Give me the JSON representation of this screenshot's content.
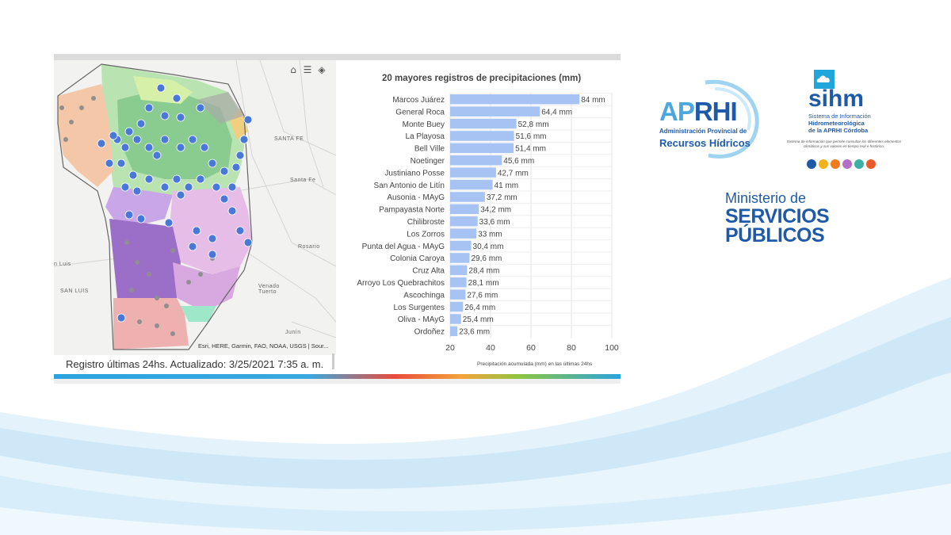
{
  "map": {
    "labels": {
      "santa_fe_top": "SANTA FE",
      "santa_fe_city": "Santa Fe",
      "rosario": "Rosario",
      "san_luis": "SAN LUIS",
      "san_luis_city": "n Luis",
      "venado_tuerto": "Venado Tuerto",
      "junin": "Junín"
    },
    "attribution": "Esri, HERE, Garmin, FAO, NOAA, USGS | Sour...",
    "footer": "Registro últimas 24hs. Actualizado: 3/25/2021 7:35 a. m.",
    "tools": [
      "home-icon",
      "list-icon",
      "layers-icon"
    ]
  },
  "chart_data": {
    "type": "bar",
    "orientation": "horizontal",
    "title": "20 mayores registros de precipitaciones (mm)",
    "xlabel": "Precipitación acumulada (mm) en las últimas 24hs",
    "ylabel": "",
    "xlim": [
      20,
      100
    ],
    "xticks": [
      20,
      40,
      60,
      80,
      100
    ],
    "categories": [
      "Marcos Juárez",
      "General Roca",
      "Monte Buey",
      "La Playosa",
      "Bell Ville",
      "Noetinger",
      "Justiniano Posse",
      "San Antonio de Litín",
      "Ausonia - MAyG",
      "Pampayasta Norte",
      "Chilibroste",
      "Los Zorros",
      "Punta del Agua - MAyG",
      "Colonia Caroya",
      "Cruz Alta",
      "Arroyo Los Quebrachitos",
      "Ascochinga",
      "Los Surgentes",
      "Oliva - MAyG",
      "Ordoñez"
    ],
    "values": [
      84,
      64.4,
      52.8,
      51.6,
      51.4,
      45.6,
      42.7,
      41,
      37.2,
      34.2,
      33.6,
      33,
      30.4,
      29.6,
      28.4,
      28.1,
      27.6,
      26.4,
      25.4,
      23.6
    ],
    "value_labels": [
      "84 mm",
      "64,4 mm",
      "52,8 mm",
      "51,6 mm",
      "51,4 mm",
      "45,6 mm",
      "42,7 mm",
      "41 mm",
      "37,2 mm",
      "34,2 mm",
      "33,6 mm",
      "33 mm",
      "30,4 mm",
      "29,6 mm",
      "28,4 mm",
      "28,1 mm",
      "27,6 mm",
      "26,4 mm",
      "25,4 mm",
      "23,6 mm"
    ],
    "bar_color": "#a6c3f3",
    "grid": true
  },
  "logos": {
    "aprhi": {
      "ap": "AP",
      "rhi": "RHI",
      "line1": "Administración Provincial de",
      "line2": "Recursos Hídricos"
    },
    "sihm": {
      "word": "sihm",
      "line1": "Sistema de Información",
      "line2": "Hidrometeorológica",
      "line3": "de la APRHI Córdoba",
      "description": "Sistema de información que permite consultar los diferentes elementos climáticos y sus valores en tiempo real e histórico."
    },
    "ministerio": {
      "line1": "Ministerio de",
      "line2": "SERVICIOS",
      "line3": "PÚBLICOS"
    }
  },
  "colors": {
    "brand_blue": "#1f5aa8",
    "light_blue": "#4aa7e0",
    "wave_blue": "#cbe6f6"
  }
}
